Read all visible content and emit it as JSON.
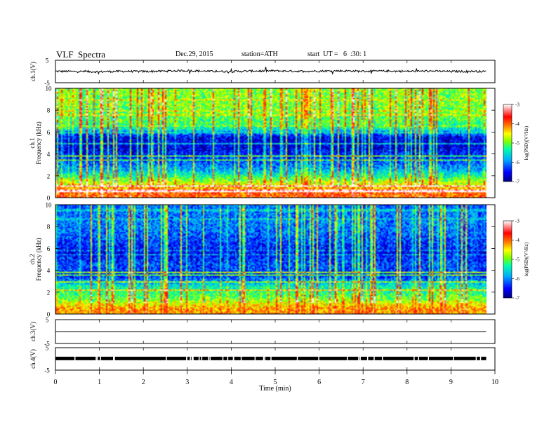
{
  "header": {
    "title": "VLF  Spectra",
    "date": "Dec.29, 2015",
    "station": "station=ATH",
    "start_ut": "start  UT =   6  :30: 1"
  },
  "colors": {
    "spectrogram_scale": [
      "#000080",
      "#0000ff",
      "#00aaff",
      "#00ffaa",
      "#7fff00",
      "#ffff00",
      "#ff8000",
      "#ff0000",
      "#ffffff"
    ]
  },
  "chart_data": [
    {
      "type": "line",
      "panel": "ch1-waveform",
      "ylabel": "ch.1(V)",
      "ylim": [
        -5,
        5
      ],
      "yticks": [
        "5",
        "-5"
      ],
      "x": [
        0,
        0.5,
        1,
        1.5,
        2,
        2.5,
        3,
        3.5,
        4,
        4.5,
        5,
        5.5,
        6,
        6.5,
        7,
        7.5,
        8,
        8.5,
        9,
        9.5,
        9.8
      ],
      "values": [
        0.1,
        0.0,
        -0.1,
        0.1,
        0.0,
        0.2,
        0.4,
        0.1,
        0.0,
        0.2,
        0.3,
        0.1,
        0.2,
        0.3,
        0.1,
        0.2,
        0.1,
        0.2,
        0.0,
        0.1,
        0.0
      ]
    },
    {
      "type": "heatmap",
      "panel": "ch1-spectrogram",
      "ylabel": "Frequency (kHz)",
      "channel_label": "ch.1",
      "ylim": [
        0,
        10
      ],
      "yticks": [
        "10",
        "8",
        "6",
        "4",
        "2",
        "0"
      ],
      "colorbar_label": "log(PSD)(V²/Hz)",
      "colorbar_range": [
        -7,
        -3
      ],
      "colorbar_ticks": [
        "-3",
        "-4",
        "-5",
        "-6",
        "-7"
      ],
      "freq_kHz": [
        0.5,
        1.5,
        2.5,
        3.5,
        4.5,
        5.5,
        6.5,
        7.5,
        8.5,
        9.5
      ],
      "mean_log_psd": [
        -4.0,
        -4.8,
        -5.8,
        -6.3,
        -6.6,
        -6.6,
        -5.2,
        -5.0,
        -4.9,
        -4.9
      ]
    },
    {
      "type": "heatmap",
      "panel": "ch2-spectrogram",
      "ylabel": "Frequency (kHz)",
      "channel_label": "ch.2",
      "ylim": [
        0,
        10
      ],
      "yticks": [
        "10",
        "8",
        "6",
        "4",
        "2",
        "0"
      ],
      "colorbar_label": "log(PSD)(V²/Hz)",
      "colorbar_range": [
        -7,
        -3
      ],
      "colorbar_ticks": [
        "-3",
        "-4",
        "-5",
        "-6",
        "-7"
      ],
      "freq_kHz": [
        0.5,
        1.5,
        2.5,
        3.5,
        4.5,
        5.5,
        6.5,
        7.5,
        8.5,
        9.5
      ],
      "mean_log_psd": [
        -4.2,
        -5.0,
        -5.4,
        -6.4,
        -6.2,
        -6.5,
        -6.3,
        -6.1,
        -6.0,
        -6.1
      ]
    },
    {
      "type": "line",
      "panel": "ch3-waveform",
      "ylabel": "ch.3(V)",
      "ylim": [
        -5,
        5
      ],
      "yticks": [
        "5",
        "-5"
      ],
      "x": [
        0,
        9.8
      ],
      "values": [
        0,
        0
      ]
    },
    {
      "type": "line",
      "panel": "ch4-waveform",
      "ylabel": "ch.4(V)",
      "ylim": [
        -5,
        5
      ],
      "yticks": [
        "5",
        "-5"
      ],
      "x": [
        0,
        9.8
      ],
      "values": [
        0.2,
        0.2
      ]
    }
  ],
  "x_axis": {
    "label": "Time  (min)",
    "xlim": [
      0,
      10
    ],
    "ticks": [
      "0",
      "1",
      "2",
      "3",
      "4",
      "5",
      "6",
      "7",
      "8",
      "9",
      "10"
    ]
  }
}
